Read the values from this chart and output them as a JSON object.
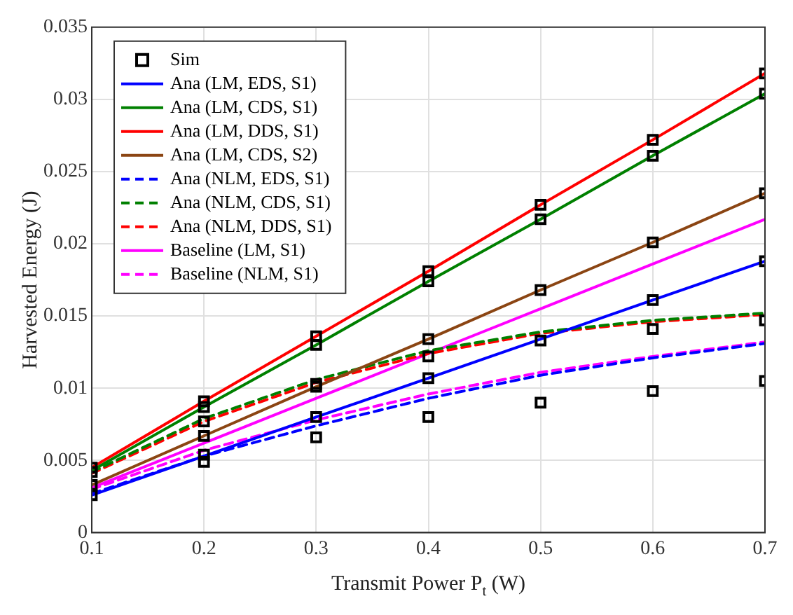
{
  "chart_data": {
    "type": "line",
    "xlabel": "Transmit Power P$_{t}$ (W)",
    "ylabel": "Harvested Energy (J)",
    "x": [
      0.1,
      0.2,
      0.3,
      0.4,
      0.5,
      0.6,
      0.7
    ],
    "xlim": [
      0.1,
      0.7
    ],
    "xticks": [
      0.1,
      0.2,
      0.3,
      0.4,
      0.5,
      0.6,
      0.7
    ],
    "ylim": [
      0,
      0.035
    ],
    "yticks": [
      0,
      0.005,
      0.01,
      0.015,
      0.02,
      0.025,
      0.03,
      0.035
    ],
    "grid": true,
    "legend": "top left",
    "marker": "none",
    "series": [
      {
        "name": "Sim",
        "type": "scatter",
        "marker": "square",
        "color": "#000000",
        "x": [
          0.1,
          0.1,
          0.1,
          0.1,
          0.2,
          0.2,
          0.2,
          0.2,
          0.2,
          0.2,
          0.3,
          0.3,
          0.3,
          0.3,
          0.3,
          0.3,
          0.4,
          0.4,
          0.4,
          0.4,
          0.4,
          0.4,
          0.5,
          0.5,
          0.5,
          0.5,
          0.5,
          0.6,
          0.6,
          0.6,
          0.6,
          0.6,
          0.6,
          0.7,
          0.7,
          0.7,
          0.7,
          0.7,
          0.7
        ],
        "values": [
          0.0026,
          0.0033,
          0.0042,
          0.0045,
          0.0091,
          0.0087,
          0.0077,
          0.0067,
          0.0054,
          0.0049,
          0.0136,
          0.013,
          0.0103,
          0.0101,
          0.008,
          0.0066,
          0.0181,
          0.0174,
          0.0134,
          0.0122,
          0.0107,
          0.008,
          0.0227,
          0.0217,
          0.0168,
          0.0133,
          0.009,
          0.0272,
          0.0261,
          0.0201,
          0.0161,
          0.0141,
          0.0098,
          0.0318,
          0.0304,
          0.0235,
          0.0188,
          0.0147,
          0.0105
        ]
      },
      {
        "name": "Ana (LM, EDS, S1)",
        "color": "#0000ff",
        "line_style": "solid",
        "values": [
          0.0026,
          0.0053,
          0.008,
          0.0107,
          0.0134,
          0.0161,
          0.0188
        ]
      },
      {
        "name": "Ana (LM, CDS, S1)",
        "color": "#008000",
        "line_style": "solid",
        "values": [
          0.0043,
          0.0087,
          0.013,
          0.0174,
          0.0217,
          0.0261,
          0.0304
        ]
      },
      {
        "name": "Ana (LM, DDS, S1)",
        "color": "#ff0000",
        "line_style": "solid",
        "values": [
          0.0045,
          0.0091,
          0.0136,
          0.0181,
          0.0227,
          0.0272,
          0.0318
        ]
      },
      {
        "name": "Ana (LM, CDS, S2)",
        "color": "#8b4513",
        "line_style": "solid",
        "values": [
          0.0033,
          0.0067,
          0.0101,
          0.0134,
          0.0168,
          0.0201,
          0.0235
        ]
      },
      {
        "name": "Ana (NLM, EDS, S1)",
        "color": "#0000ff",
        "line_style": "dashed",
        "values": [
          0.0027,
          0.0053,
          0.0074,
          0.0093,
          0.0109,
          0.0121,
          0.0131
        ]
      },
      {
        "name": "Ana (NLM, CDS, S1)",
        "color": "#008000",
        "line_style": "dashed",
        "values": [
          0.0042,
          0.0079,
          0.0106,
          0.0126,
          0.0139,
          0.0147,
          0.0152
        ]
      },
      {
        "name": "Ana (NLM, DDS, S1)",
        "color": "#ff0000",
        "line_style": "dashed",
        "values": [
          0.0041,
          0.0077,
          0.0104,
          0.0124,
          0.0138,
          0.0146,
          0.0151
        ]
      },
      {
        "name": "Baseline (LM, S1)",
        "color": "#ff00ff",
        "line_style": "solid",
        "values": [
          0.0031,
          0.0062,
          0.0093,
          0.0124,
          0.0155,
          0.0186,
          0.0217
        ]
      },
      {
        "name": "Baseline (NLM, S1)",
        "color": "#ff00ff",
        "line_style": "dashed",
        "values": [
          0.003,
          0.0057,
          0.0078,
          0.0096,
          0.0111,
          0.0122,
          0.0132
        ]
      }
    ]
  }
}
